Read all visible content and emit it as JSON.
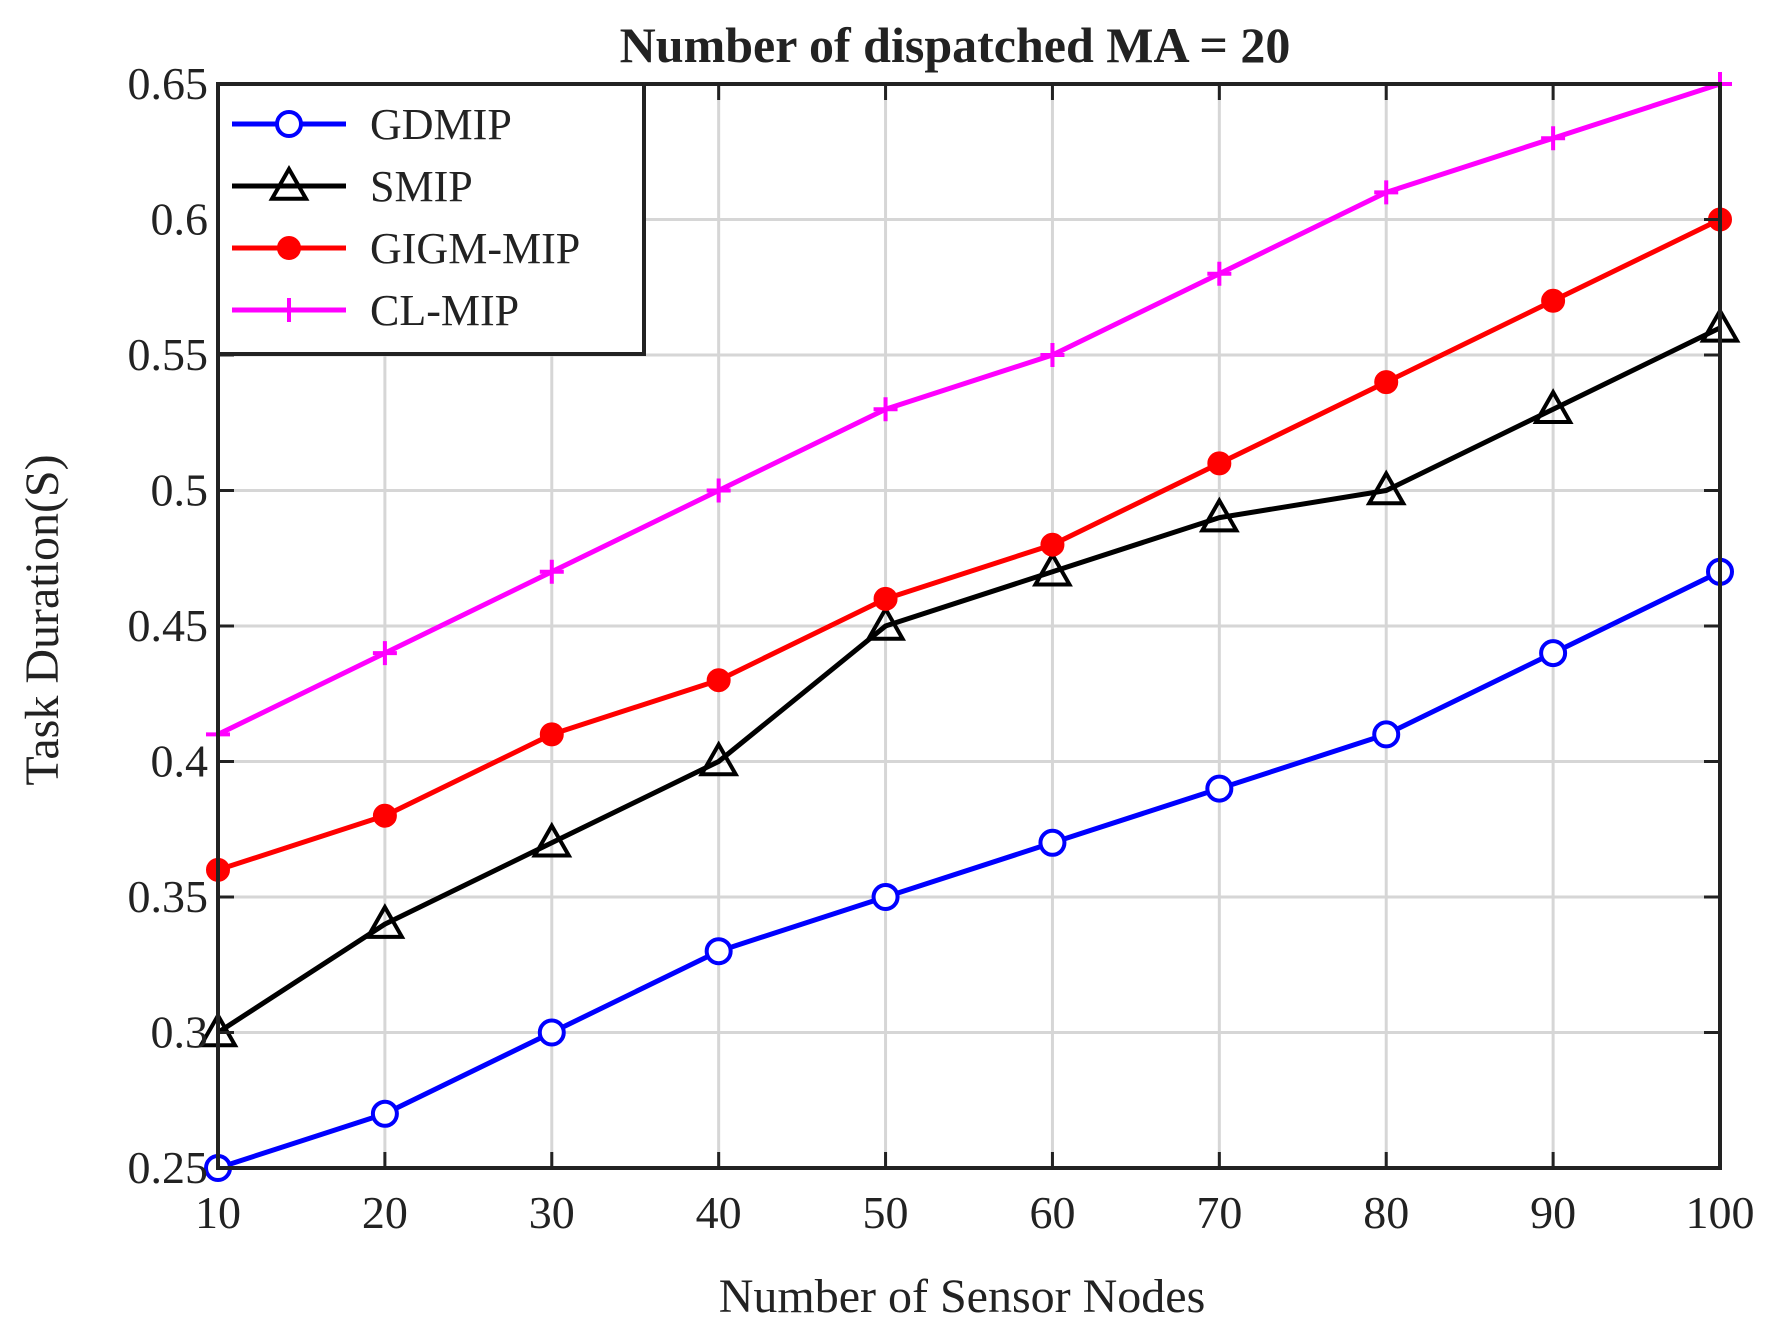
{
  "chart_data": {
    "type": "line",
    "title": "Number of dispatched MA = 20",
    "xlabel": "Number of Sensor Nodes",
    "ylabel": "Task Duration(S)",
    "x": [
      10,
      20,
      30,
      40,
      50,
      60,
      70,
      80,
      90,
      100
    ],
    "xlim": [
      10,
      100
    ],
    "ylim": [
      0.25,
      0.65
    ],
    "xticks": [
      "10",
      "20",
      "30",
      "40",
      "50",
      "60",
      "70",
      "80",
      "90",
      "100"
    ],
    "yticks": [
      "0.25",
      "0.3",
      "0.35",
      "0.4",
      "0.45",
      "0.5",
      "0.55",
      "0.6",
      "0.65"
    ],
    "grid": true,
    "legend_position": "top-left",
    "series": [
      {
        "name": "GDMIP",
        "color": "#0000ff",
        "marker": "circle",
        "values": [
          0.25,
          0.27,
          0.3,
          0.33,
          0.35,
          0.37,
          0.39,
          0.41,
          0.44,
          0.47
        ]
      },
      {
        "name": "SMIP",
        "color": "#000000",
        "marker": "triangle",
        "values": [
          0.3,
          0.34,
          0.37,
          0.4,
          0.45,
          0.47,
          0.49,
          0.5,
          0.53,
          0.56
        ]
      },
      {
        "name": "GIGM-MIP",
        "color": "#ff0000",
        "marker": "dot",
        "values": [
          0.36,
          0.38,
          0.41,
          0.43,
          0.46,
          0.48,
          0.51,
          0.54,
          0.57,
          0.6
        ]
      },
      {
        "name": "CL-MIP",
        "color": "#ff00ff",
        "marker": "plus",
        "values": [
          0.41,
          0.44,
          0.47,
          0.5,
          0.53,
          0.55,
          0.58,
          0.61,
          0.63,
          0.65
        ]
      }
    ]
  }
}
